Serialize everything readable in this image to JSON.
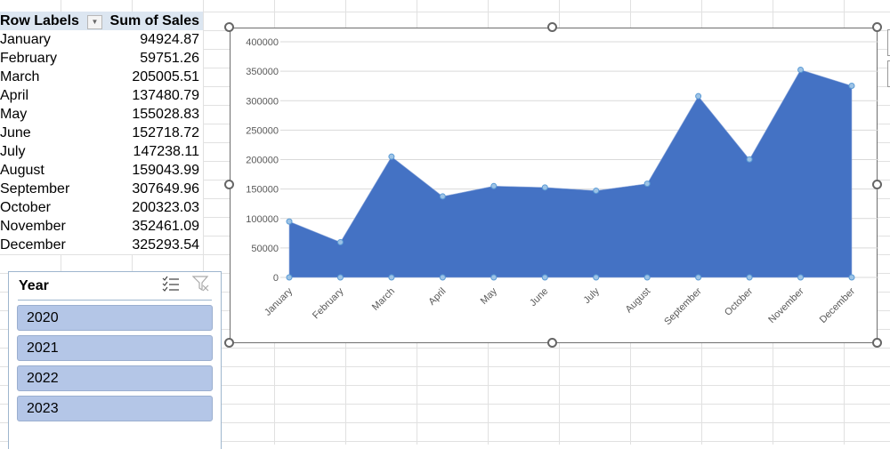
{
  "pivot": {
    "header": {
      "row_labels": "Row Labels",
      "sum_of_sales": "Sum of Sales"
    },
    "rows": [
      {
        "label": "January",
        "value": "94924.87"
      },
      {
        "label": "February",
        "value": "59751.26"
      },
      {
        "label": "March",
        "value": "205005.51"
      },
      {
        "label": "April",
        "value": "137480.79"
      },
      {
        "label": "May",
        "value": "155028.83"
      },
      {
        "label": "June",
        "value": "152718.72"
      },
      {
        "label": "July",
        "value": "147238.11"
      },
      {
        "label": "August",
        "value": "159043.99"
      },
      {
        "label": "September",
        "value": "307649.96"
      },
      {
        "label": "October",
        "value": "200323.03"
      },
      {
        "label": "November",
        "value": "352461.09"
      },
      {
        "label": "December",
        "value": "325293.54"
      }
    ],
    "filter_icon": "dropdown-arrow-icon"
  },
  "slicer": {
    "title": "Year",
    "icons": [
      "multi-select-icon",
      "clear-filter-icon"
    ],
    "items": [
      "2020",
      "2021",
      "2022",
      "2023"
    ]
  },
  "colors": {
    "area_fill": "#4472c4",
    "marker": "#9dc3e6",
    "slicer_item": "#b4c6e7",
    "pivot_header": "#dce6f1"
  },
  "chart_data": {
    "type": "area",
    "categories": [
      "January",
      "February",
      "March",
      "April",
      "May",
      "June",
      "July",
      "August",
      "September",
      "October",
      "November",
      "December"
    ],
    "values": [
      94924.87,
      59751.26,
      205005.51,
      137480.79,
      155028.83,
      152718.72,
      147238.11,
      159043.99,
      307649.96,
      200323.03,
      352461.09,
      325293.54
    ],
    "title": "",
    "xlabel": "",
    "ylabel": "",
    "ylim": [
      0,
      400000
    ],
    "yticks": [
      "0",
      "50000",
      "100000",
      "150000",
      "200000",
      "250000",
      "300000",
      "350000",
      "400000"
    ],
    "grid": true,
    "legend": "none"
  }
}
